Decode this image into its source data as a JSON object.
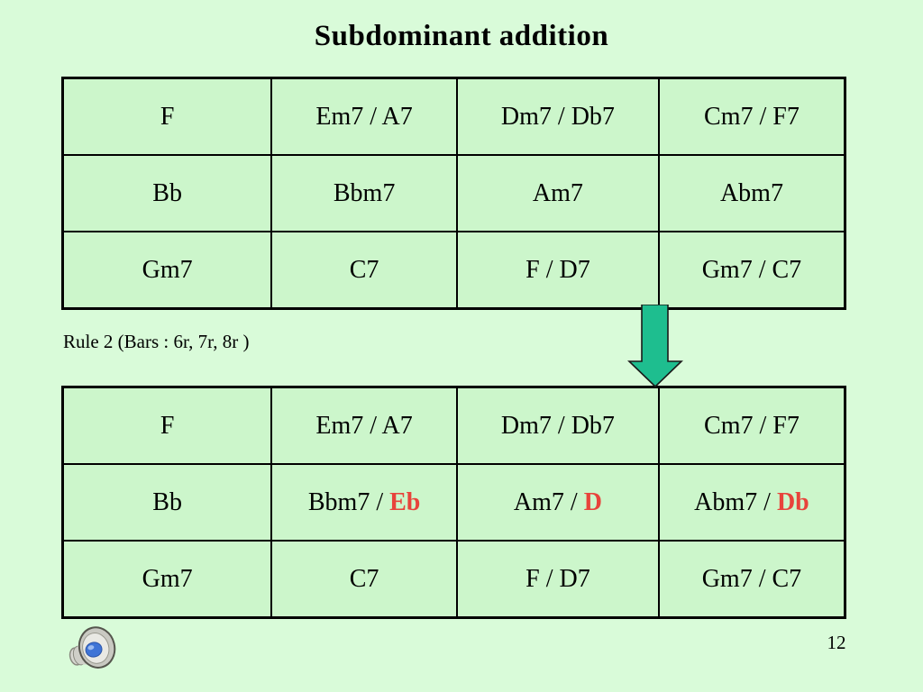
{
  "slide": {
    "title": "Subdominant addition",
    "rule_label": "Rule 2 (Bars : 6r, 7r, 8r )",
    "page_number": "12"
  },
  "colors": {
    "background": "#D9FBD9",
    "cell_fill": "#CCF6CB",
    "border": "#000000",
    "accent_red": "#E8433B",
    "arrow_fill": "#1EBE8F"
  },
  "icons": {
    "down_arrow": "down-arrow-icon",
    "speaker": "speaker-audio-icon"
  },
  "tables": {
    "before": {
      "rows": [
        [
          "F",
          "Em7 / A7",
          "Dm7 / Db7",
          "Cm7 / F7"
        ],
        [
          "Bb",
          "Bbm7",
          "Am7",
          "Abm7"
        ],
        [
          "Gm7",
          "C7",
          "F / D7",
          "Gm7 / C7"
        ]
      ]
    },
    "after": {
      "rows": [
        [
          "F",
          "Em7 / A7",
          "Dm7 / Db7",
          "Cm7 / F7"
        ],
        [
          "Bb",
          {
            "text": "Bbm7 / ",
            "accent": "Eb"
          },
          {
            "text": "Am7 / ",
            "accent": "D"
          },
          {
            "text": "Abm7 / ",
            "accent": "Db"
          }
        ],
        [
          "Gm7",
          "C7",
          "F / D7",
          "Gm7 / C7"
        ]
      ]
    }
  }
}
